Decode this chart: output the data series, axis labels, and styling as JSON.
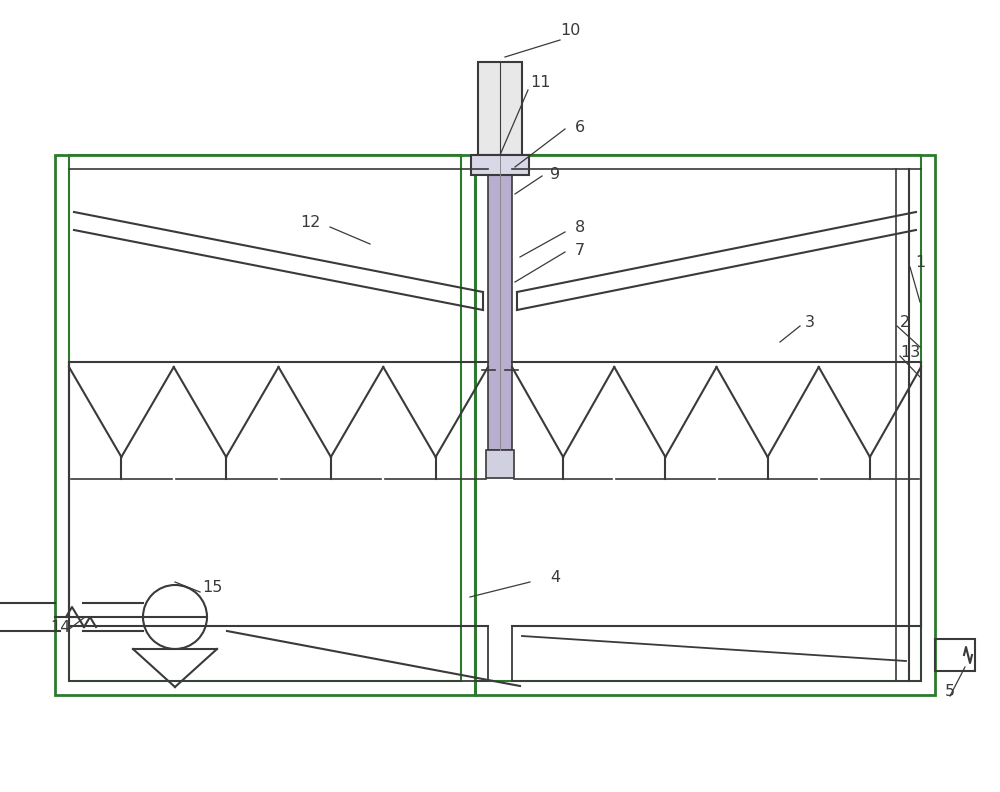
{
  "bg_color": "#ffffff",
  "line_color": "#3a3a3a",
  "green_color": "#2d7a2d",
  "purple_color": "#8878a8",
  "fig_width": 10.0,
  "fig_height": 7.92
}
